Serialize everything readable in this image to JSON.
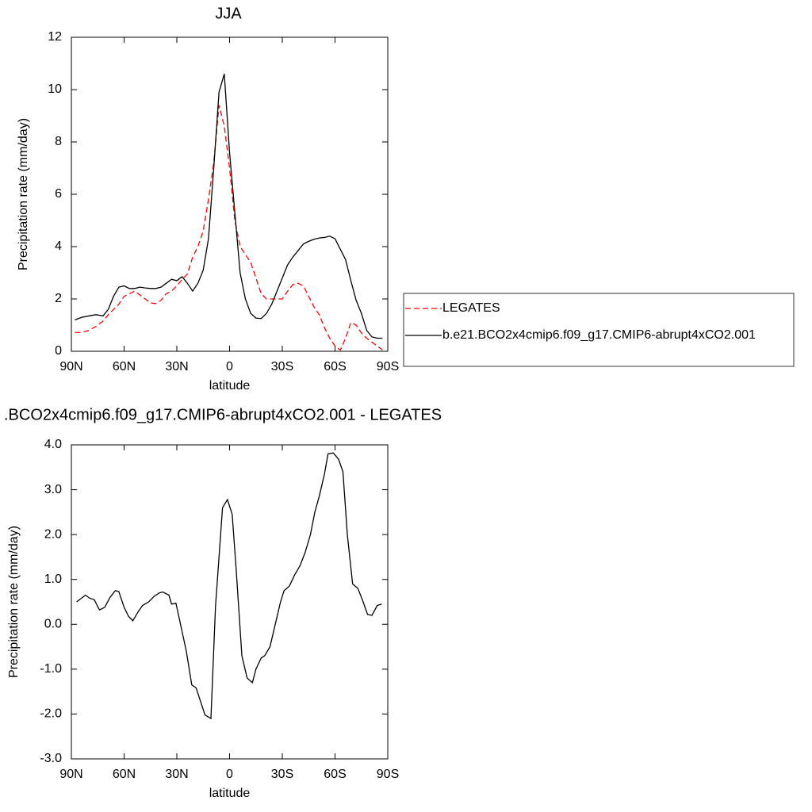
{
  "chart_data": [
    {
      "type": "line",
      "title": "JJA",
      "x_label": "latitude",
      "y_label": "Precipitation rate (mm/day)",
      "x": [
        88,
        84,
        80,
        76,
        72,
        69,
        66,
        63,
        60,
        57,
        54,
        51,
        48,
        45,
        42,
        39,
        36,
        33,
        30,
        27,
        24,
        21,
        18,
        15,
        12,
        9,
        6,
        3,
        0,
        -3,
        -6,
        -9,
        -12,
        -15,
        -18,
        -21,
        -24,
        -27,
        -30,
        -33,
        -36,
        -39,
        -42,
        -45,
        -48,
        -51,
        -54,
        -57,
        -60,
        -63,
        -66,
        -69,
        -72,
        -75,
        -78,
        -81,
        -84,
        -87
      ],
      "xlim": [
        90,
        -90
      ],
      "xticks": [
        {
          "value": 90,
          "label": "90N"
        },
        {
          "value": 60,
          "label": "60N"
        },
        {
          "value": 30,
          "label": "30N"
        },
        0,
        {
          "value": -30,
          "label": "30S"
        },
        {
          "value": -60,
          "label": "60S"
        },
        {
          "value": -90,
          "label": "90S"
        }
      ],
      "ylim": [
        0,
        12
      ],
      "yticks": [
        0,
        2,
        4,
        6,
        8,
        10,
        12
      ],
      "legend": "outside-right",
      "series": [
        {
          "name": "LEGATES",
          "color": "#ff0000",
          "dash": "dashed",
          "values": [
            0.72,
            0.72,
            0.8,
            0.95,
            1.15,
            1.4,
            1.6,
            1.8,
            2.1,
            2.2,
            2.3,
            2.15,
            2.0,
            1.85,
            1.82,
            1.95,
            2.2,
            2.3,
            2.5,
            2.75,
            2.95,
            3.6,
            4.0,
            4.6,
            5.8,
            7.2,
            9.4,
            8.6,
            7.0,
            5.0,
            4.0,
            3.7,
            3.4,
            2.8,
            2.2,
            2.0,
            2.0,
            2.0,
            2.0,
            2.3,
            2.55,
            2.6,
            2.5,
            2.1,
            1.7,
            1.4,
            0.9,
            0.5,
            0.2,
            0.05,
            0.5,
            1.1,
            1.0,
            0.7,
            0.5,
            0.35,
            0.2,
            0.05
          ]
        },
        {
          "name": "b.e21.BCO2x4cmip6.f09_g17.CMIP6-abrupt4xCO2.001",
          "color": "#000000",
          "dash": "solid",
          "values": [
            1.2,
            1.3,
            1.35,
            1.4,
            1.35,
            1.6,
            2.1,
            2.45,
            2.5,
            2.4,
            2.4,
            2.45,
            2.42,
            2.4,
            2.4,
            2.45,
            2.6,
            2.75,
            2.7,
            2.85,
            2.6,
            2.3,
            2.6,
            3.1,
            4.3,
            7.0,
            9.9,
            10.6,
            7.6,
            5.3,
            3.0,
            2.0,
            1.45,
            1.27,
            1.25,
            1.45,
            1.8,
            2.3,
            2.8,
            3.3,
            3.6,
            3.85,
            4.1,
            4.2,
            4.28,
            4.33,
            4.35,
            4.4,
            4.3,
            3.9,
            3.5,
            2.7,
            1.95,
            1.45,
            0.8,
            0.55,
            0.5,
            0.5
          ]
        }
      ]
    },
    {
      "type": "line",
      "title": ".BCO2x4cmip6.f09_g17.CMIP6-abrupt4xCO2.001 - LEGATES",
      "x_label": "latitude",
      "y_label": "Precipitation rate (mm/day)",
      "x": [
        87,
        82,
        79.5,
        77,
        74,
        71,
        68,
        65,
        63,
        60,
        57.5,
        55,
        52,
        49.5,
        46,
        43,
        40,
        38,
        37,
        34.5,
        33,
        30.5,
        24.6,
        21.5,
        19,
        14,
        10.6,
        8,
        4,
        1.2,
        -1.5,
        -3.8,
        -7,
        -10,
        -13,
        -15,
        -18,
        -20,
        -23,
        -26,
        -29,
        -31,
        -34,
        -37,
        -40,
        -43,
        -46,
        -48.5,
        -51,
        -54,
        -56,
        -59,
        -62,
        -64.5,
        -67,
        -70,
        -73,
        -76,
        -78.5,
        -81,
        -84,
        -86.5
      ],
      "xlim": [
        90,
        -90
      ],
      "xticks": [
        {
          "value": 90,
          "label": "90N"
        },
        {
          "value": 60,
          "label": "60N"
        },
        {
          "value": 30,
          "label": "30N"
        },
        0,
        {
          "value": -30,
          "label": "30S"
        },
        {
          "value": -60,
          "label": "60S"
        },
        {
          "value": -90,
          "label": "90S"
        }
      ],
      "ylim": [
        -3,
        4
      ],
      "yticks": [
        {
          "value": -3,
          "label": "-3.0"
        },
        {
          "value": -2,
          "label": "-2.0"
        },
        {
          "value": -1,
          "label": "-1.0"
        },
        {
          "value": 0,
          "label": "0.0"
        },
        {
          "value": 1,
          "label": "1.0"
        },
        {
          "value": 2,
          "label": "2.0"
        },
        {
          "value": 3,
          "label": "3.0"
        },
        {
          "value": 4,
          "label": "4.0"
        }
      ],
      "color": "#000000",
      "values": [
        0.5,
        0.65,
        0.58,
        0.55,
        0.32,
        0.38,
        0.6,
        0.75,
        0.73,
        0.38,
        0.18,
        0.08,
        0.28,
        0.42,
        0.5,
        0.62,
        0.7,
        0.72,
        0.7,
        0.65,
        0.45,
        0.47,
        -0.6,
        -1.35,
        -1.42,
        -2.02,
        -2.1,
        0.4,
        2.6,
        2.78,
        2.45,
        1.2,
        -0.7,
        -1.2,
        -1.3,
        -1.0,
        -0.75,
        -0.7,
        -0.5,
        0.0,
        0.5,
        0.75,
        0.85,
        1.1,
        1.3,
        1.6,
        2.0,
        2.5,
        2.85,
        3.35,
        3.8,
        3.82,
        3.68,
        3.4,
        2.0,
        0.9,
        0.8,
        0.5,
        0.22,
        0.2,
        0.42,
        0.45
      ]
    }
  ]
}
